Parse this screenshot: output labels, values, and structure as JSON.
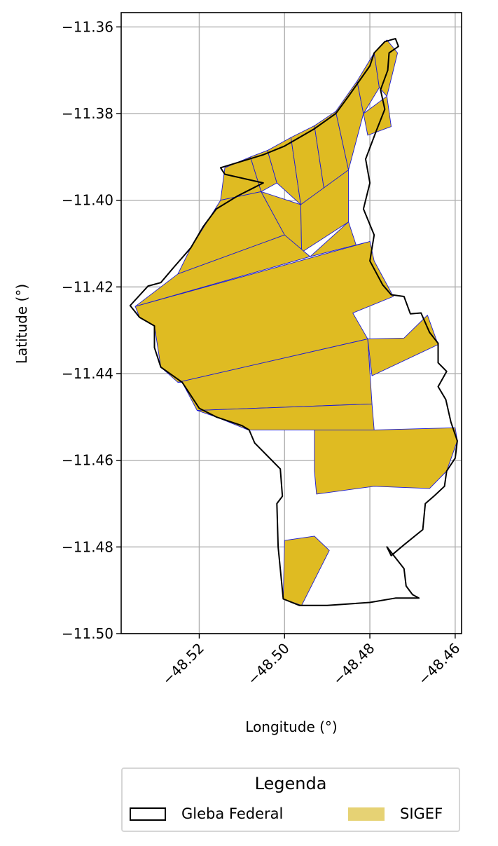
{
  "map": {
    "xlabel": "Longitude (°)",
    "ylabel": "Latitude (°)",
    "x_ticks": [
      {
        "value": -48.52,
        "label": "−48.52"
      },
      {
        "value": -48.5,
        "label": "−48.50"
      },
      {
        "value": -48.48,
        "label": "−48.48"
      },
      {
        "value": -48.46,
        "label": "−48.46"
      }
    ],
    "y_ticks": [
      {
        "value": -11.36,
        "label": "−11.36"
      },
      {
        "value": -11.38,
        "label": "−11.38"
      },
      {
        "value": -11.4,
        "label": "−11.40"
      },
      {
        "value": -11.42,
        "label": "−11.42"
      },
      {
        "value": -11.44,
        "label": "−11.44"
      },
      {
        "value": -11.46,
        "label": "−11.46"
      },
      {
        "value": -11.48,
        "label": "−11.48"
      },
      {
        "value": -11.5,
        "label": "−11.50"
      }
    ],
    "xlim": [
      -48.5383,
      -48.4585
    ],
    "ylim": [
      -11.5,
      -11.3567
    ],
    "grid": true,
    "colors": {
      "gleba_outline": "#000000",
      "sigef_fill": "#dfbb22",
      "sigef_edge": "#1a1ad6",
      "legend_sigef_swatch": "#e6d274",
      "grid": "#b0b0b0"
    },
    "gleba_boundary": [
      [
        -48.4765,
        -11.3634
      ],
      [
        -48.474,
        -11.3627
      ],
      [
        -48.4733,
        -11.3645
      ],
      [
        -48.4755,
        -11.366
      ],
      [
        -48.4758,
        -11.37
      ],
      [
        -48.4775,
        -11.3745
      ],
      [
        -48.4765,
        -11.379
      ],
      [
        -48.4785,
        -11.384
      ],
      [
        -48.481,
        -11.3905
      ],
      [
        -48.48,
        -11.396
      ],
      [
        -48.4815,
        -11.402
      ],
      [
        -48.479,
        -11.408
      ],
      [
        -48.48,
        -11.414
      ],
      [
        -48.477,
        -11.4195
      ],
      [
        -48.475,
        -11.4218
      ],
      [
        -48.472,
        -11.4222
      ],
      [
        -48.4705,
        -11.4262
      ],
      [
        -48.468,
        -11.426
      ],
      [
        -48.466,
        -11.4305
      ],
      [
        -48.464,
        -11.433
      ],
      [
        -48.464,
        -11.4375
      ],
      [
        -48.462,
        -11.4395
      ],
      [
        -48.464,
        -11.443
      ],
      [
        -48.4622,
        -11.446
      ],
      [
        -48.461,
        -11.4512
      ],
      [
        -48.4595,
        -11.4555
      ],
      [
        -48.46,
        -11.4595
      ],
      [
        -48.462,
        -11.4625
      ],
      [
        -48.4625,
        -11.466
      ],
      [
        -48.465,
        -11.4683
      ],
      [
        -48.467,
        -11.47
      ],
      [
        -48.4676,
        -11.476
      ],
      [
        -48.472,
        -11.4795
      ],
      [
        -48.475,
        -11.482
      ],
      [
        -48.476,
        -11.48
      ],
      [
        -48.472,
        -11.485
      ],
      [
        -48.4715,
        -11.489
      ],
      [
        -48.47,
        -11.491
      ],
      [
        -48.4685,
        -11.4918
      ],
      [
        -48.474,
        -11.4918
      ],
      [
        -48.48,
        -11.4928
      ],
      [
        -48.49,
        -11.4935
      ],
      [
        -48.4965,
        -11.4935
      ],
      [
        -48.5003,
        -11.492
      ],
      [
        -48.5015,
        -11.48
      ],
      [
        -48.5018,
        -11.47
      ],
      [
        -48.5005,
        -11.4683
      ],
      [
        -48.501,
        -11.462
      ],
      [
        -48.504,
        -11.459
      ],
      [
        -48.507,
        -11.456
      ],
      [
        -48.5083,
        -11.453
      ],
      [
        -48.51,
        -11.452
      ],
      [
        -48.516,
        -11.45
      ],
      [
        -48.52,
        -11.448
      ],
      [
        -48.524,
        -11.442
      ],
      [
        -48.529,
        -11.4385
      ],
      [
        -48.5305,
        -11.434
      ],
      [
        -48.5305,
        -11.429
      ],
      [
        -48.534,
        -11.427
      ],
      [
        -48.5362,
        -11.4243
      ],
      [
        -48.532,
        -11.4198
      ],
      [
        -48.529,
        -11.419
      ],
      [
        -48.526,
        -11.4155
      ],
      [
        -48.522,
        -11.411
      ],
      [
        -48.519,
        -11.406
      ],
      [
        -48.516,
        -11.402
      ],
      [
        -48.511,
        -11.399
      ],
      [
        -48.508,
        -11.3975
      ],
      [
        -48.505,
        -11.396
      ],
      [
        -48.514,
        -11.394
      ],
      [
        -48.515,
        -11.3925
      ],
      [
        -48.51,
        -11.391
      ],
      [
        -48.505,
        -11.3895
      ],
      [
        -48.5,
        -11.3875
      ],
      [
        -48.493,
        -11.3835
      ],
      [
        -48.488,
        -11.38
      ],
      [
        -48.485,
        -11.376
      ],
      [
        -48.48,
        -11.369
      ],
      [
        -48.479,
        -11.366
      ],
      [
        -48.4765,
        -11.3634
      ]
    ],
    "sigef_parcels": [
      [
        [
          -48.514,
          -11.3925
        ],
        [
          -48.508,
          -11.39
        ],
        [
          -48.5055,
          -11.398
        ],
        [
          -48.515,
          -11.4
        ]
      ],
      [
        [
          -48.508,
          -11.39
        ],
        [
          -48.504,
          -11.3885
        ],
        [
          -48.5018,
          -11.396
        ],
        [
          -48.5055,
          -11.398
        ]
      ],
      [
        [
          -48.504,
          -11.3885
        ],
        [
          -48.4985,
          -11.3855
        ],
        [
          -48.4962,
          -11.401
        ],
        [
          -48.5018,
          -11.396
        ]
      ],
      [
        [
          -48.4985,
          -11.3855
        ],
        [
          -48.493,
          -11.3828
        ],
        [
          -48.4905,
          -11.399
        ],
        [
          -48.4962,
          -11.401
        ]
      ],
      [
        [
          -48.493,
          -11.3828
        ],
        [
          -48.488,
          -11.3795
        ],
        [
          -48.485,
          -11.393
        ],
        [
          -48.4905,
          -11.399
        ]
      ],
      [
        [
          -48.488,
          -11.3795
        ],
        [
          -48.483,
          -11.3725
        ],
        [
          -48.4815,
          -11.38
        ],
        [
          -48.485,
          -11.393
        ]
      ],
      [
        [
          -48.483,
          -11.3725
        ],
        [
          -48.479,
          -11.366
        ],
        [
          -48.4778,
          -11.374
        ],
        [
          -48.4815,
          -11.38
        ]
      ],
      [
        [
          -48.479,
          -11.366
        ],
        [
          -48.476,
          -11.363
        ],
        [
          -48.4735,
          -11.366
        ],
        [
          -48.476,
          -11.376
        ],
        [
          -48.4778,
          -11.374
        ]
      ],
      [
        [
          -48.4815,
          -11.38
        ],
        [
          -48.476,
          -11.376
        ],
        [
          -48.475,
          -11.383
        ],
        [
          -48.4805,
          -11.385
        ]
      ],
      [
        [
          -48.522,
          -11.411
        ],
        [
          -48.515,
          -11.4
        ],
        [
          -48.5055,
          -11.398
        ],
        [
          -48.5,
          -11.408
        ],
        [
          -48.525,
          -11.417
        ]
      ],
      [
        [
          -48.5055,
          -11.398
        ],
        [
          -48.4962,
          -11.401
        ],
        [
          -48.496,
          -11.412
        ],
        [
          -48.5,
          -11.408
        ]
      ],
      [
        [
          -48.4962,
          -11.401
        ],
        [
          -48.485,
          -11.393
        ],
        [
          -48.485,
          -11.405
        ],
        [
          -48.496,
          -11.412
        ]
      ],
      [
        [
          -48.525,
          -11.417
        ],
        [
          -48.5,
          -11.408
        ],
        [
          -48.494,
          -11.413
        ],
        [
          -48.535,
          -11.4245
        ]
      ],
      [
        [
          -48.494,
          -11.413
        ],
        [
          -48.485,
          -11.405
        ],
        [
          -48.4825,
          -11.4125
        ],
        [
          -48.48,
          -11.4095
        ]
      ],
      [
        [
          -48.535,
          -11.4245
        ],
        [
          -48.48,
          -11.4095
        ],
        [
          -48.479,
          -11.414
        ],
        [
          -48.4745,
          -11.4222
        ],
        [
          -48.484,
          -11.426
        ],
        [
          -48.4805,
          -11.432
        ],
        [
          -48.525,
          -11.442
        ],
        [
          -48.529,
          -11.4385
        ],
        [
          -48.5305,
          -11.429
        ],
        [
          -48.534,
          -11.427
        ]
      ],
      [
        [
          -48.525,
          -11.442
        ],
        [
          -48.4805,
          -11.432
        ],
        [
          -48.4795,
          -11.447
        ],
        [
          -48.5205,
          -11.4485
        ],
        [
          -48.524,
          -11.442
        ]
      ],
      [
        [
          -48.5205,
          -11.4485
        ],
        [
          -48.4795,
          -11.447
        ],
        [
          -48.479,
          -11.453
        ],
        [
          -48.5085,
          -11.453
        ],
        [
          -48.516,
          -11.45
        ]
      ],
      [
        [
          -48.4805,
          -11.432
        ],
        [
          -48.472,
          -11.4318
        ],
        [
          -48.4665,
          -11.4265
        ],
        [
          -48.464,
          -11.4333
        ],
        [
          -48.4795,
          -11.4405
        ]
      ],
      [
        [
          -48.493,
          -11.453
        ],
        [
          -48.479,
          -11.453
        ],
        [
          -48.46,
          -11.4525
        ],
        [
          -48.4595,
          -11.4555
        ],
        [
          -48.462,
          -11.4625
        ],
        [
          -48.466,
          -11.4665
        ],
        [
          -48.479,
          -11.466
        ],
        [
          -48.4925,
          -11.4678
        ],
        [
          -48.493,
          -11.4625
        ]
      ],
      [
        [
          -48.5,
          -11.4785
        ],
        [
          -48.493,
          -11.4775
        ],
        [
          -48.4895,
          -11.4808
        ],
        [
          -48.496,
          -11.4935
        ],
        [
          -48.5003,
          -11.492
        ]
      ]
    ]
  },
  "legend": {
    "title": "Legenda",
    "entries": [
      {
        "label": "Gleba Federal",
        "style": "outline"
      },
      {
        "label": "SIGEF",
        "style": "fill"
      }
    ]
  }
}
